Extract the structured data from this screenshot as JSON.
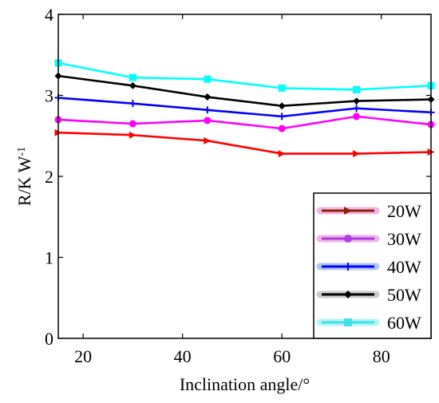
{
  "chart_data": {
    "type": "line",
    "xlabel": "Inclination angle/°",
    "ylabel_base": "R/K W",
    "ylabel_sup": "-1",
    "xlim": [
      15,
      90
    ],
    "ylim": [
      0,
      4
    ],
    "xticks": [
      20,
      40,
      60,
      80
    ],
    "yticks": [
      0,
      1,
      2,
      3,
      4
    ],
    "x": [
      15,
      30,
      45,
      60,
      75,
      90
    ],
    "grid": false,
    "legend_position": "bottom-right",
    "series": [
      {
        "name": "20W",
        "color": "#ff0000",
        "legend_line_color": "#8b2500",
        "legend_glow": "#f0b4e6",
        "marker": "triangle-right",
        "values": [
          2.54,
          2.51,
          2.44,
          2.28,
          2.28,
          2.3
        ]
      },
      {
        "name": "30W",
        "color": "#ff00ff",
        "legend_line_color": "#b03ce8",
        "legend_glow": "#f0b4e6",
        "marker": "circle",
        "values": [
          2.7,
          2.65,
          2.69,
          2.59,
          2.74,
          2.64
        ]
      },
      {
        "name": "40W",
        "color": "#0000ff",
        "legend_line_color": "#0000ff",
        "legend_glow": "#b4c8f5",
        "marker": "plus",
        "values": [
          2.97,
          2.9,
          2.82,
          2.74,
          2.84,
          2.79
        ]
      },
      {
        "name": "50W",
        "color": "#000000",
        "legend_line_color": "#000000",
        "legend_glow": "#cccccc",
        "marker": "diamond",
        "values": [
          3.24,
          3.12,
          2.98,
          2.87,
          2.93,
          2.95
        ]
      },
      {
        "name": "60W",
        "color": "#00ffff",
        "legend_line_color": "#40e0f0",
        "legend_glow": "#b4f5f5",
        "marker": "square",
        "values": [
          3.4,
          3.22,
          3.2,
          3.09,
          3.07,
          3.12
        ]
      }
    ]
  }
}
